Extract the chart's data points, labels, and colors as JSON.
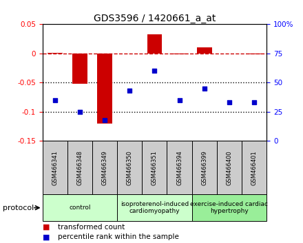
{
  "title": "GDS3596 / 1420661_a_at",
  "samples": [
    "GSM466341",
    "GSM466348",
    "GSM466349",
    "GSM466350",
    "GSM466351",
    "GSM466394",
    "GSM466399",
    "GSM466400",
    "GSM466401"
  ],
  "transformed_count": [
    0.001,
    -0.052,
    -0.12,
    0.0,
    0.033,
    -0.001,
    0.01,
    0.0,
    -0.001
  ],
  "percentile_rank": [
    35,
    25,
    18,
    43,
    60,
    35,
    45,
    33,
    33
  ],
  "ylim_left": [
    -0.15,
    0.05
  ],
  "ylim_right": [
    0,
    100
  ],
  "yticks_left": [
    0.05,
    0.0,
    -0.05,
    -0.1,
    -0.15
  ],
  "yticks_right": [
    100,
    75,
    50,
    25,
    0
  ],
  "bar_color": "#cc0000",
  "dot_color": "#0000cc",
  "dashed_line_color": "#cc0000",
  "dotted_line_color": "#000000",
  "group_colors": [
    "#ccffcc",
    "#ccffcc",
    "#99ee99"
  ],
  "group_labels": [
    "control",
    "isoproterenol-induced\ncardiomyopathy",
    "exercise-induced cardiac\nhypertrophy"
  ],
  "group_starts": [
    0,
    3,
    6
  ],
  "group_ends": [
    3,
    6,
    9
  ],
  "legend_bar_label": "transformed count",
  "legend_dot_label": "percentile rank within the sample",
  "protocol_label": "protocol",
  "background_color": "#ffffff",
  "title_fontsize": 10
}
